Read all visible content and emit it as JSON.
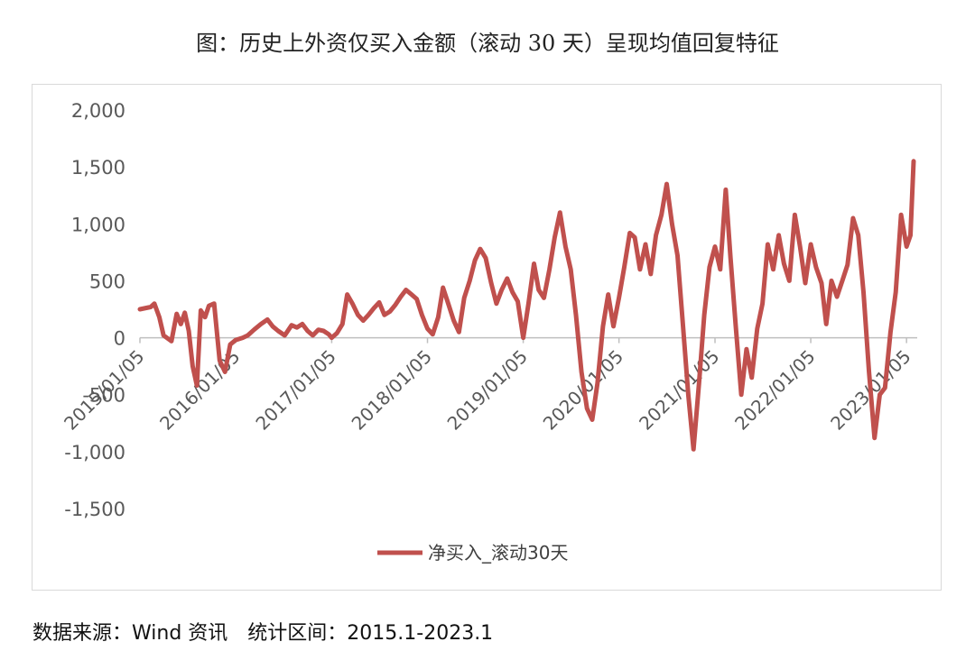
{
  "title": "图：历史上外资仅买入金额（滚动 30 天）呈现均值回复特征",
  "source": "数据来源：Wind 资讯　统计区间：2015.1-2023.1",
  "chart_data": {
    "type": "line",
    "title": "图：历史上外资仅买入金额（滚动 30 天）呈现均值回复特征",
    "xlabel": "",
    "ylabel": "",
    "ylim": [
      -1500,
      2000
    ],
    "yticks": [
      2000,
      1500,
      1000,
      500,
      0,
      -500,
      -1000,
      -1500
    ],
    "ytick_labels": [
      "2,000",
      "1,500",
      "1,000",
      "500",
      "0",
      "-500",
      "-1,000",
      "-1,500"
    ],
    "xlim": [
      "2015/01/05",
      "2023/02/01"
    ],
    "xticks": [
      "2015/01/05",
      "2016/01/05",
      "2017/01/05",
      "2018/01/05",
      "2019/01/05",
      "2020/01/05",
      "2021/01/05",
      "2022/01/05",
      "2023/01/05"
    ],
    "grid": false,
    "legend": "bottom",
    "color": "#c0504d",
    "series": [
      {
        "name": "净买入_滚动30天",
        "points": [
          [
            "2015/01/05",
            250
          ],
          [
            "2015/02/15",
            270
          ],
          [
            "2015/03/01",
            300
          ],
          [
            "2015/03/20",
            180
          ],
          [
            "2015/04/05",
            20
          ],
          [
            "2015/05/05",
            -30
          ],
          [
            "2015/05/25",
            210
          ],
          [
            "2015/06/10",
            120
          ],
          [
            "2015/06/25",
            220
          ],
          [
            "2015/07/10",
            60
          ],
          [
            "2015/07/25",
            -250
          ],
          [
            "2015/08/10",
            -420
          ],
          [
            "2015/08/25",
            240
          ],
          [
            "2015/09/10",
            180
          ],
          [
            "2015/09/25",
            280
          ],
          [
            "2015/10/15",
            300
          ],
          [
            "2015/11/05",
            -200
          ],
          [
            "2015/11/25",
            -300
          ],
          [
            "2015/12/15",
            -60
          ],
          [
            "2016/01/05",
            -20
          ],
          [
            "2016/02/01",
            0
          ],
          [
            "2016/02/20",
            20
          ],
          [
            "2016/03/15",
            70
          ],
          [
            "2016/04/10",
            120
          ],
          [
            "2016/05/05",
            160
          ],
          [
            "2016/05/25",
            100
          ],
          [
            "2016/06/15",
            60
          ],
          [
            "2016/07/10",
            20
          ],
          [
            "2016/08/05",
            110
          ],
          [
            "2016/08/25",
            90
          ],
          [
            "2016/09/15",
            120
          ],
          [
            "2016/10/05",
            60
          ],
          [
            "2016/10/25",
            20
          ],
          [
            "2016/11/15",
            70
          ],
          [
            "2016/12/05",
            60
          ],
          [
            "2016/12/25",
            30
          ],
          [
            "2017/01/05",
            0
          ],
          [
            "2017/01/25",
            40
          ],
          [
            "2017/02/15",
            120
          ],
          [
            "2017/03/05",
            380
          ],
          [
            "2017/03/25",
            300
          ],
          [
            "2017/04/15",
            200
          ],
          [
            "2017/05/05",
            150
          ],
          [
            "2017/05/25",
            200
          ],
          [
            "2017/06/15",
            260
          ],
          [
            "2017/07/05",
            310
          ],
          [
            "2017/07/25",
            200
          ],
          [
            "2017/08/15",
            230
          ],
          [
            "2017/09/05",
            290
          ],
          [
            "2017/09/25",
            360
          ],
          [
            "2017/10/15",
            420
          ],
          [
            "2017/11/05",
            380
          ],
          [
            "2017/11/25",
            340
          ],
          [
            "2017/12/15",
            200
          ],
          [
            "2018/01/05",
            80
          ],
          [
            "2018/01/25",
            30
          ],
          [
            "2018/02/15",
            180
          ],
          [
            "2018/03/05",
            440
          ],
          [
            "2018/03/25",
            300
          ],
          [
            "2018/04/15",
            150
          ],
          [
            "2018/05/05",
            50
          ],
          [
            "2018/05/25",
            350
          ],
          [
            "2018/06/15",
            500
          ],
          [
            "2018/07/05",
            680
          ],
          [
            "2018/07/25",
            780
          ],
          [
            "2018/08/15",
            700
          ],
          [
            "2018/09/05",
            480
          ],
          [
            "2018/09/25",
            300
          ],
          [
            "2018/10/15",
            420
          ],
          [
            "2018/11/05",
            520
          ],
          [
            "2018/11/25",
            400
          ],
          [
            "2018/12/15",
            320
          ],
          [
            "2019/01/05",
            0
          ],
          [
            "2019/01/25",
            300
          ],
          [
            "2019/02/15",
            650
          ],
          [
            "2019/03/05",
            420
          ],
          [
            "2019/03/25",
            350
          ],
          [
            "2019/04/15",
            600
          ],
          [
            "2019/05/05",
            880
          ],
          [
            "2019/05/25",
            1100
          ],
          [
            "2019/06/15",
            800
          ],
          [
            "2019/07/05",
            600
          ],
          [
            "2019/07/25",
            200
          ],
          [
            "2019/08/15",
            -300
          ],
          [
            "2019/09/05",
            -620
          ],
          [
            "2019/09/25",
            -720
          ],
          [
            "2019/10/15",
            -400
          ],
          [
            "2019/11/05",
            100
          ],
          [
            "2019/11/25",
            380
          ],
          [
            "2019/12/15",
            100
          ],
          [
            "2020/01/05",
            350
          ],
          [
            "2020/01/25",
            620
          ],
          [
            "2020/02/15",
            920
          ],
          [
            "2020/03/05",
            880
          ],
          [
            "2020/03/25",
            600
          ],
          [
            "2020/04/15",
            820
          ],
          [
            "2020/05/05",
            560
          ],
          [
            "2020/05/25",
            900
          ],
          [
            "2020/06/15",
            1080
          ],
          [
            "2020/07/05",
            1350
          ],
          [
            "2020/07/25",
            1000
          ],
          [
            "2020/08/15",
            720
          ],
          [
            "2020/09/05",
            100
          ],
          [
            "2020/09/25",
            -500
          ],
          [
            "2020/10/15",
            -980
          ],
          [
            "2020/11/05",
            -400
          ],
          [
            "2020/11/25",
            200
          ],
          [
            "2020/12/15",
            620
          ],
          [
            "2021/01/05",
            800
          ],
          [
            "2021/01/25",
            600
          ],
          [
            "2021/02/15",
            1300
          ],
          [
            "2021/03/05",
            700
          ],
          [
            "2021/03/25",
            100
          ],
          [
            "2021/04/15",
            -500
          ],
          [
            "2021/05/05",
            -100
          ],
          [
            "2021/05/25",
            -350
          ],
          [
            "2021/06/15",
            80
          ],
          [
            "2021/07/05",
            300
          ],
          [
            "2021/07/25",
            820
          ],
          [
            "2021/08/15",
            600
          ],
          [
            "2021/09/05",
            900
          ],
          [
            "2021/09/25",
            650
          ],
          [
            "2021/10/15",
            500
          ],
          [
            "2021/11/05",
            1080
          ],
          [
            "2021/11/25",
            800
          ],
          [
            "2021/12/15",
            480
          ],
          [
            "2022/01/05",
            820
          ],
          [
            "2022/01/25",
            620
          ],
          [
            "2022/02/15",
            480
          ],
          [
            "2022/03/05",
            120
          ],
          [
            "2022/03/25",
            500
          ],
          [
            "2022/04/15",
            360
          ],
          [
            "2022/05/05",
            500
          ],
          [
            "2022/05/25",
            640
          ],
          [
            "2022/06/15",
            1050
          ],
          [
            "2022/07/05",
            900
          ],
          [
            "2022/07/25",
            400
          ],
          [
            "2022/08/15",
            -300
          ],
          [
            "2022/09/05",
            -880
          ],
          [
            "2022/09/25",
            -500
          ],
          [
            "2022/10/15",
            -440
          ],
          [
            "2022/11/05",
            50
          ],
          [
            "2022/11/25",
            400
          ],
          [
            "2022/12/15",
            1080
          ],
          [
            "2023/01/05",
            800
          ],
          [
            "2023/01/20",
            900
          ],
          [
            "2023/02/01",
            1550
          ]
        ]
      }
    ]
  }
}
